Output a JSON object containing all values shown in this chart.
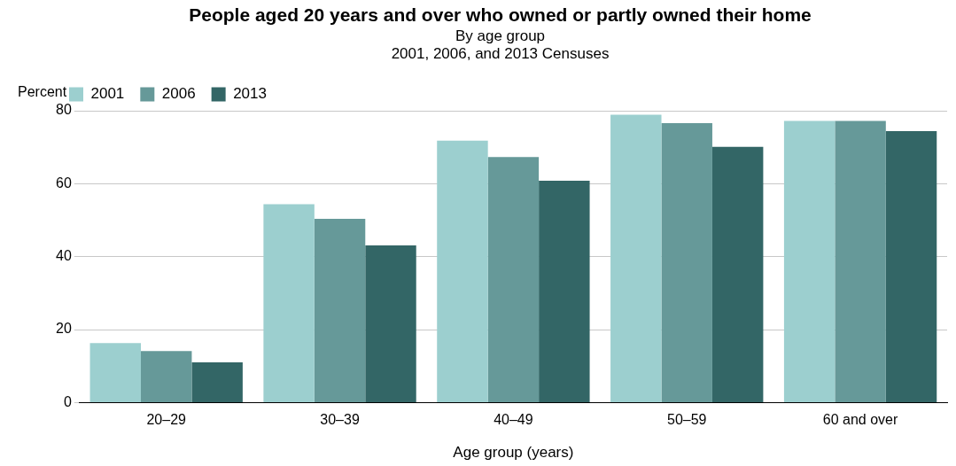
{
  "chart_data": {
    "type": "bar",
    "title": "People aged 20 years and over who owned or partly owned their home",
    "subtitle": "By age group\n2001, 2006, and 2013 Censuses",
    "xlabel": "Age group (years)",
    "ylabel": "Percent",
    "categories": [
      "20–29",
      "30–39",
      "40–49",
      "50–59",
      "60 and over"
    ],
    "series": [
      {
        "name": "2001",
        "color": "#9ccfcf",
        "values": [
          16.3,
          54.4,
          71.8,
          78.9,
          77.2
        ]
      },
      {
        "name": "2006",
        "color": "#669999",
        "values": [
          14.1,
          50.4,
          67.3,
          76.6,
          77.2
        ]
      },
      {
        "name": "2013",
        "color": "#336666",
        "values": [
          11.0,
          43.1,
          60.8,
          70.1,
          74.4
        ]
      }
    ],
    "ylim": [
      0,
      80
    ],
    "yticks": [
      0,
      20,
      40,
      60,
      80
    ],
    "grid": "y",
    "legend": "top left"
  }
}
